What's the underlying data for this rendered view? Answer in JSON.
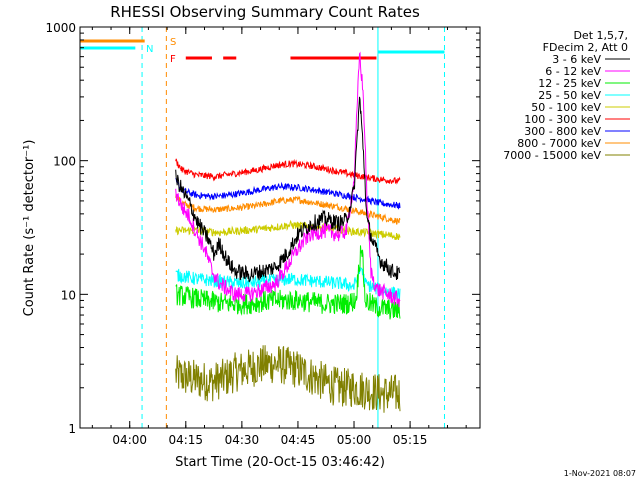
{
  "chart_data": {
    "type": "line",
    "title": "RHESSI Observing Summary Count Rates",
    "xlabel": "Start Time (20-Oct-15 03:46:42)",
    "ylabel": "Count Rate (s⁻¹ detector⁻¹)",
    "yscale": "log",
    "ylim": [
      1,
      1000
    ],
    "xlim_minutes": [
      226.7,
      333.7
    ],
    "x_ticks": [
      {
        "label": "04:00",
        "minutes": 240
      },
      {
        "label": "04:15",
        "minutes": 255
      },
      {
        "label": "04:30",
        "minutes": 270
      },
      {
        "label": "04:45",
        "minutes": 285
      },
      {
        "label": "05:00",
        "minutes": 300
      },
      {
        "label": "05:15",
        "minutes": 315
      }
    ],
    "y_ticks": [
      {
        "label": "1",
        "value": 1
      },
      {
        "label": "10",
        "value": 10
      },
      {
        "label": "100",
        "value": 100
      },
      {
        "label": "1000",
        "value": 1000
      }
    ],
    "legend_header": [
      "Det 1,5,7,",
      "FDecim 2, Att 0"
    ],
    "legend_position": "right",
    "footer_date": "1-Nov-2021 08:07",
    "series": [
      {
        "name": "3 - 6 keV",
        "color": "#000000",
        "noise": 0.12,
        "points": [
          [
            252.3,
            75
          ],
          [
            254,
            60
          ],
          [
            256,
            48
          ],
          [
            258,
            35
          ],
          [
            259.5,
            30
          ],
          [
            261,
            26
          ],
          [
            262.5,
            20
          ],
          [
            264,
            24
          ],
          [
            266,
            18
          ],
          [
            268,
            15
          ],
          [
            272,
            14
          ],
          [
            276,
            15
          ],
          [
            279,
            16
          ],
          [
            282,
            20
          ],
          [
            285,
            28
          ],
          [
            288,
            33
          ],
          [
            292,
            37
          ],
          [
            296,
            34
          ],
          [
            298,
            36
          ],
          [
            300,
            60
          ],
          [
            301.5,
            300
          ],
          [
            302.5,
            120
          ],
          [
            303.5,
            35
          ],
          [
            305,
            25
          ],
          [
            307,
            18
          ],
          [
            310,
            15
          ],
          [
            312.3,
            14
          ]
        ]
      },
      {
        "name": "6 - 12 keV",
        "color": "#ff00ff",
        "noise": 0.12,
        "points": [
          [
            252.3,
            58
          ],
          [
            254,
            45
          ],
          [
            256,
            38
          ],
          [
            258,
            28
          ],
          [
            260,
            22
          ],
          [
            262,
            15
          ],
          [
            264,
            12
          ],
          [
            266,
            11
          ],
          [
            268,
            10
          ],
          [
            272,
            10
          ],
          [
            276,
            11
          ],
          [
            279,
            12
          ],
          [
            282,
            16
          ],
          [
            285,
            22
          ],
          [
            288,
            28
          ],
          [
            292,
            30
          ],
          [
            296,
            28
          ],
          [
            298,
            30
          ],
          [
            300,
            70
          ],
          [
            301.5,
            650
          ],
          [
            302.5,
            300
          ],
          [
            303.5,
            50
          ],
          [
            304.5,
            15
          ],
          [
            306,
            11
          ],
          [
            309,
            10
          ],
          [
            312.3,
            9
          ]
        ]
      },
      {
        "name": "12 - 25 keV",
        "color": "#00ee00",
        "noise": 0.16,
        "points": [
          [
            252.3,
            10
          ],
          [
            256,
            9.5
          ],
          [
            260,
            9
          ],
          [
            266,
            8.5
          ],
          [
            272,
            8.5
          ],
          [
            278,
            9
          ],
          [
            285,
            9
          ],
          [
            292,
            8.5
          ],
          [
            298,
            8.5
          ],
          [
            300.5,
            9
          ],
          [
            302,
            25
          ],
          [
            303,
            9
          ],
          [
            306,
            8
          ],
          [
            312.3,
            7.5
          ]
        ]
      },
      {
        "name": "25 - 50 keV",
        "color": "#00ffff",
        "noise": 0.1,
        "points": [
          [
            252.3,
            14
          ],
          [
            258,
            13
          ],
          [
            264,
            12.5
          ],
          [
            270,
            12
          ],
          [
            276,
            12.5
          ],
          [
            283,
            13
          ],
          [
            290,
            12.5
          ],
          [
            297,
            12
          ],
          [
            300,
            11.5
          ],
          [
            302,
            16
          ],
          [
            303,
            12
          ],
          [
            306,
            11
          ],
          [
            312.3,
            10
          ]
        ]
      },
      {
        "name": "50 - 100 keV",
        "color": "#cccc00",
        "noise": 0.06,
        "points": [
          [
            252.3,
            30
          ],
          [
            258,
            30
          ],
          [
            264,
            29
          ],
          [
            270,
            30
          ],
          [
            276,
            31
          ],
          [
            283,
            33
          ],
          [
            290,
            32
          ],
          [
            297,
            30
          ],
          [
            303,
            29
          ],
          [
            312.3,
            27
          ]
        ]
      },
      {
        "name": "100 - 300 keV",
        "color": "#ff0000",
        "noise": 0.05,
        "points": [
          [
            252.3,
            100
          ],
          [
            254,
            85
          ],
          [
            258,
            78
          ],
          [
            263,
            76
          ],
          [
            268,
            80
          ],
          [
            274,
            85
          ],
          [
            279,
            92
          ],
          [
            283,
            95
          ],
          [
            288,
            92
          ],
          [
            294,
            85
          ],
          [
            300,
            78
          ],
          [
            306,
            73
          ],
          [
            312.3,
            70
          ]
        ]
      },
      {
        "name": "300 - 800 keV",
        "color": "#0000ff",
        "noise": 0.05,
        "points": [
          [
            252.3,
            70
          ],
          [
            254,
            60
          ],
          [
            258,
            55
          ],
          [
            263,
            54
          ],
          [
            268,
            56
          ],
          [
            274,
            60
          ],
          [
            280,
            64
          ],
          [
            285,
            63
          ],
          [
            290,
            60
          ],
          [
            296,
            56
          ],
          [
            302,
            52
          ],
          [
            307,
            48
          ],
          [
            312.3,
            46
          ]
        ]
      },
      {
        "name": "800 - 7000 keV",
        "color": "#ff8c00",
        "noise": 0.05,
        "points": [
          [
            252.3,
            55
          ],
          [
            254,
            48
          ],
          [
            258,
            44
          ],
          [
            263,
            43
          ],
          [
            268,
            44
          ],
          [
            274,
            46
          ],
          [
            280,
            50
          ],
          [
            285,
            51
          ],
          [
            290,
            48
          ],
          [
            296,
            45
          ],
          [
            302,
            41
          ],
          [
            307,
            38
          ],
          [
            312.3,
            35
          ]
        ]
      },
      {
        "name": "7000 - 15000 keV",
        "color": "#808000",
        "noise": 0.3,
        "points": [
          [
            252.3,
            2.5
          ],
          [
            258,
            2.3
          ],
          [
            262,
            2.2
          ],
          [
            266,
            2.4
          ],
          [
            268,
            2.6
          ],
          [
            272,
            2.8
          ],
          [
            276,
            3
          ],
          [
            280,
            3
          ],
          [
            284,
            2.8
          ],
          [
            288,
            2.5
          ],
          [
            292,
            2.2
          ],
          [
            296,
            2
          ],
          [
            300,
            2
          ],
          [
            304,
            1.9
          ],
          [
            308,
            1.8
          ],
          [
            312.3,
            1.8
          ]
        ]
      }
    ],
    "flags": [
      {
        "name": "S",
        "color": "#ff8c00",
        "segments": [
          [
            226.7,
            244
          ]
        ]
      },
      {
        "name": "N",
        "color": "#00ffff",
        "segments": [
          [
            226.7,
            241.5
          ]
        ]
      },
      {
        "name": "F",
        "color": "#ff0000",
        "segments": [
          [
            255,
            262
          ],
          [
            265,
            268.5
          ],
          [
            283,
            306
          ]
        ]
      }
    ],
    "night_lines": [
      {
        "color": "#00ffff",
        "style": "solid",
        "minutes": 226.7
      },
      {
        "color": "#00ffff",
        "style": "dashed",
        "minutes": 243.3
      },
      {
        "color": "#ff8c00",
        "style": "dashed",
        "minutes": 249.8
      },
      {
        "color": "#00ffff",
        "style": "solid",
        "minutes": 306.4
      },
      {
        "color": "#00ffff",
        "style": "dashed",
        "minutes": 324.2
      }
    ],
    "post_night_segment": {
      "color": "#00ffff",
      "from": 306.4,
      "to": 324.2,
      "value": 650
    }
  }
}
